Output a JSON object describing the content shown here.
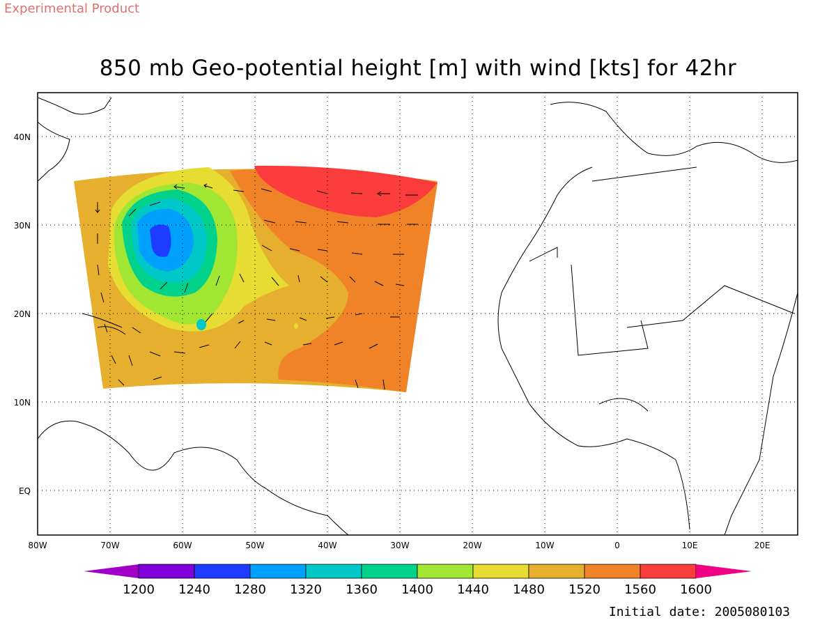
{
  "header": {
    "badge": "Experimental Product",
    "title": "850 mb Geo-potential height [m] with wind [kts] for 42hr"
  },
  "footer": {
    "initial_date": "Initial date: 2005080103"
  },
  "map": {
    "lon_labels": [
      "80W",
      "70W",
      "60W",
      "50W",
      "40W",
      "30W",
      "20W",
      "10W",
      "0",
      "10E",
      "20E"
    ],
    "lat_labels": [
      "40N",
      "30N",
      "20N",
      "10N",
      "EQ"
    ],
    "lon_range": [
      -80,
      20
    ],
    "lat_range": [
      -5,
      45
    ],
    "grid": true
  },
  "colorbar": {
    "levels": [
      "1200",
      "1240",
      "1280",
      "1320",
      "1360",
      "1400",
      "1440",
      "1480",
      "1520",
      "1560",
      "1600"
    ],
    "colors": [
      "#a000c8",
      "#8200dc",
      "#1e3cff",
      "#00a0ff",
      "#00c8c8",
      "#00d28c",
      "#a0e632",
      "#e6dc32",
      "#e6af2d",
      "#f08228",
      "#fa3c3c",
      "#f00082"
    ]
  }
}
